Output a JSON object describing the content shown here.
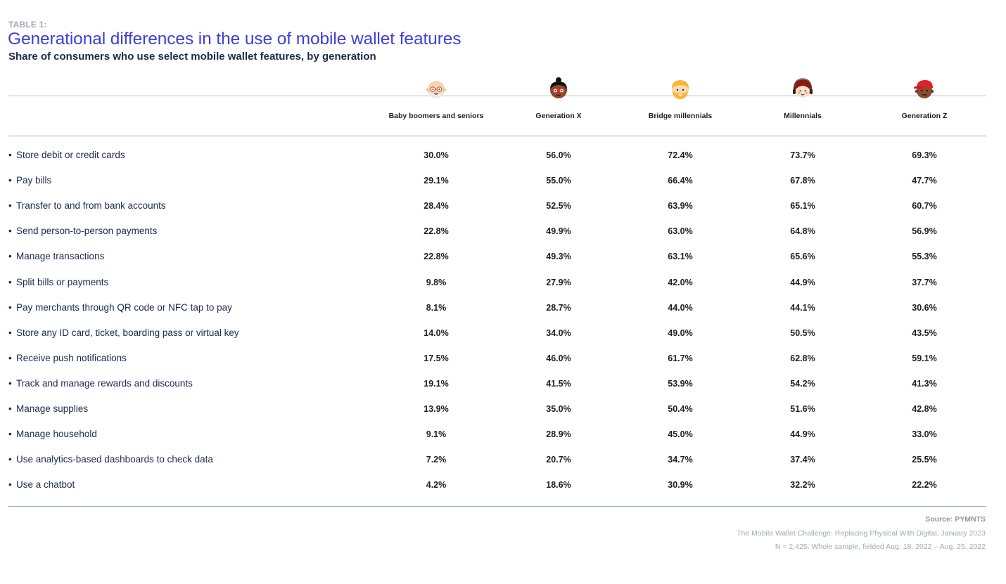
{
  "header": {
    "table_label": "TABLE 1:",
    "title": "Generational differences in the use of mobile wallet features",
    "subtitle": "Share of consumers who use select mobile wallet features, by generation"
  },
  "columns": [
    {
      "label": "Baby boomers and seniors",
      "icon": "boomer-avatar-icon"
    },
    {
      "label": "Generation X",
      "icon": "gen-x-avatar-icon"
    },
    {
      "label": "Bridge millennials",
      "icon": "bridge-millennial-avatar-icon"
    },
    {
      "label": "Millennials",
      "icon": "millennial-avatar-icon"
    },
    {
      "label": "Generation Z",
      "icon": "gen-z-avatar-icon"
    }
  ],
  "rows": [
    {
      "label": "Store debit or credit cards",
      "values": [
        "30.0%",
        "56.0%",
        "72.4%",
        "73.7%",
        "69.3%"
      ]
    },
    {
      "label": "Pay bills",
      "values": [
        "29.1%",
        "55.0%",
        "66.4%",
        "67.8%",
        "47.7%"
      ]
    },
    {
      "label": "Transfer to and from bank accounts",
      "values": [
        "28.4%",
        "52.5%",
        "63.9%",
        "65.1%",
        "60.7%"
      ]
    },
    {
      "label": "Send person-to-person payments",
      "values": [
        "22.8%",
        "49.9%",
        "63.0%",
        "64.8%",
        "56.9%"
      ]
    },
    {
      "label": "Manage transactions",
      "values": [
        "22.8%",
        "49.3%",
        "63.1%",
        "65.6%",
        "55.3%"
      ]
    },
    {
      "label": "Split bills or payments",
      "values": [
        "9.8%",
        "27.9%",
        "42.0%",
        "44.9%",
        "37.7%"
      ]
    },
    {
      "label": "Pay merchants through QR code or NFC tap to pay",
      "values": [
        "8.1%",
        "28.7%",
        "44.0%",
        "44.1%",
        "30.6%"
      ]
    },
    {
      "label": "Store any ID card, ticket, boarding pass or virtual key",
      "values": [
        "14.0%",
        "34.0%",
        "49.0%",
        "50.5%",
        "43.5%"
      ]
    },
    {
      "label": "Receive push notifications",
      "values": [
        "17.5%",
        "46.0%",
        "61.7%",
        "62.8%",
        "59.1%"
      ]
    },
    {
      "label": "Track and manage rewards and discounts",
      "values": [
        "19.1%",
        "41.5%",
        "53.9%",
        "54.2%",
        "41.3%"
      ]
    },
    {
      "label": "Manage supplies",
      "values": [
        "13.9%",
        "35.0%",
        "50.4%",
        "51.6%",
        "42.8%"
      ]
    },
    {
      "label": "Manage household",
      "values": [
        "9.1%",
        "28.9%",
        "45.0%",
        "44.9%",
        "33.0%"
      ]
    },
    {
      "label": "Use analytics-based dashboards to check data",
      "values": [
        "7.2%",
        "20.7%",
        "34.7%",
        "37.4%",
        "25.5%"
      ]
    },
    {
      "label": "Use a chatbot",
      "values": [
        "4.2%",
        "18.6%",
        "30.9%",
        "32.2%",
        "22.2%"
      ]
    }
  ],
  "bullet": "•",
  "footer": {
    "source": "Source: PYMNTS",
    "publication": "The Mobile Wallet Challenge: Replacing Physical With Digital, January 2023",
    "sample": "N = 2,425: Whole sample, fielded Aug. 18, 2022 – Aug. 25, 2022"
  },
  "colors": {
    "title": "#3e3fd8",
    "subtitle": "#1b2a47",
    "muted": "#a3a8b3",
    "rule": "#9ea6b8"
  }
}
